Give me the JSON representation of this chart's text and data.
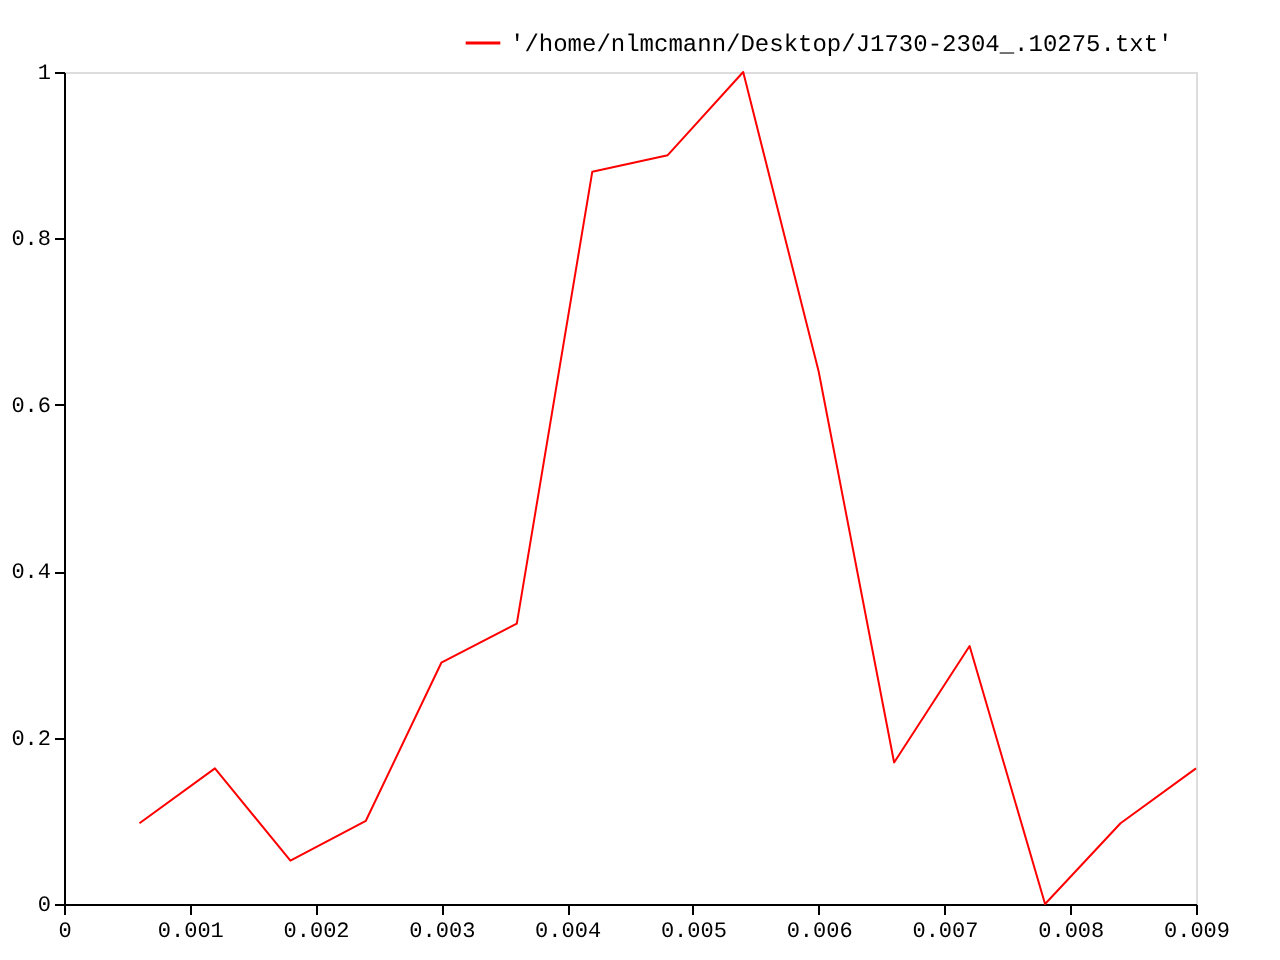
{
  "chart_data": {
    "type": "line",
    "x": [
      0.0006,
      0.0012,
      0.0018,
      0.0024,
      0.003,
      0.0036,
      0.0042,
      0.0048,
      0.0054,
      0.006,
      0.0066,
      0.0072,
      0.0078,
      0.0084,
      0.009
    ],
    "series": [
      {
        "name": "'/home/nlmcmann/Desktop/J1730-2304_.10275.txt'",
        "color": "#ff0000",
        "values": [
          0.097,
          0.163,
          0.052,
          0.1,
          0.29,
          0.337,
          0.88,
          0.9,
          1.0,
          0.64,
          0.17,
          0.31,
          0.0,
          0.097,
          0.163
        ]
      }
    ],
    "xlim": [
      0,
      0.009
    ],
    "xticks": [
      0,
      0.001,
      0.002,
      0.003,
      0.004,
      0.005,
      0.006,
      0.007,
      0.008,
      0.009
    ],
    "ylim": [
      0,
      1
    ],
    "yticks": [
      0,
      0.2,
      0.4,
      0.6,
      0.8,
      1
    ],
    "grid": false,
    "legend": "top right",
    "marker": "none",
    "line_style": "solid"
  }
}
